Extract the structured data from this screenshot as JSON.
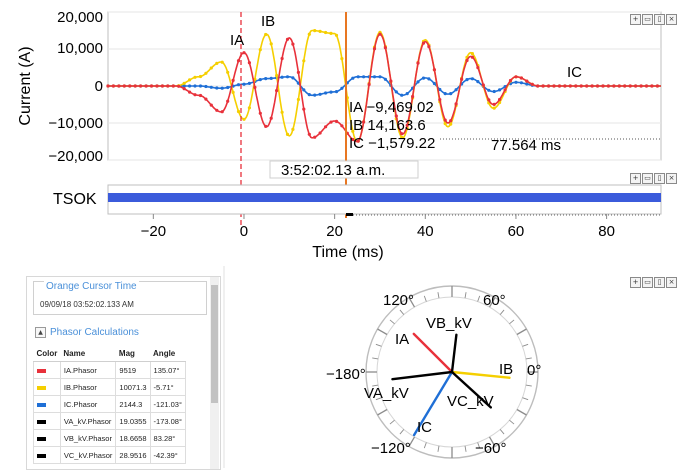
{
  "waveform_chart": {
    "ylabel": "Current (A)",
    "yticks": [
      "20,000",
      "10,000",
      "0",
      "−10,000",
      "−20,000"
    ],
    "series_labels": {
      "ia": "IA",
      "ib": "IB",
      "ic": "IC"
    },
    "readout": {
      "ia": "IA −9,469.02",
      "ib": "IB 14,163.6",
      "ic": "IC −1,579.22"
    },
    "delta_time": "77.564 ms",
    "cursor_time": "3:52:02.13 a.m.",
    "colors": {
      "ia": "#e8313b",
      "ib": "#f5cf00",
      "ic": "#1f6fd6",
      "cursor": "#e87722"
    }
  },
  "chart_data": {
    "type": "line",
    "xlabel": "Time (ms)",
    "ylabel": "Current (A)",
    "xlim": [
      -30,
      92
    ],
    "ylim": [
      -20000,
      20000
    ],
    "xticks": [
      -20,
      0,
      20,
      40,
      60,
      80
    ],
    "yticks": [
      -20000,
      -10000,
      0,
      10000,
      20000
    ],
    "series": [
      {
        "name": "IA",
        "x": [
          -30,
          -15,
          -10,
          -5,
          0,
          5,
          10,
          15,
          20,
          25,
          30,
          35,
          40,
          45,
          50,
          55,
          60,
          65,
          70,
          75,
          80,
          85,
          90
        ],
        "values": [
          0,
          0,
          -2500,
          -7000,
          9000,
          -11000,
          13000,
          -14000,
          -9469,
          -15000,
          14000,
          -13000,
          12000,
          -10000,
          8000,
          -5000,
          2500,
          0,
          0,
          0,
          0,
          0,
          0
        ]
      },
      {
        "name": "IB",
        "x": [
          -30,
          -15,
          -10,
          -5,
          0,
          5,
          10,
          15,
          20,
          25,
          30,
          35,
          40,
          45,
          50,
          55,
          60,
          65,
          70,
          75,
          80,
          85,
          90
        ],
        "values": [
          0,
          0,
          2500,
          6500,
          -9000,
          14000,
          -13500,
          15000,
          14164,
          -15000,
          14500,
          -14000,
          12500,
          -11000,
          9000,
          -6000,
          2500,
          0,
          0,
          0,
          0,
          0,
          0
        ]
      },
      {
        "name": "IC",
        "x": [
          -30,
          -15,
          -10,
          -5,
          0,
          5,
          10,
          15,
          20,
          25,
          30,
          35,
          40,
          45,
          50,
          55,
          60,
          65,
          70,
          75,
          80,
          85,
          90
        ],
        "values": [
          0,
          0,
          0,
          -600,
          500,
          2000,
          2500,
          -2500,
          -1579,
          2500,
          2500,
          -2500,
          2200,
          -2200,
          2000,
          -1500,
          1000,
          0,
          0,
          0,
          0,
          0,
          0
        ]
      }
    ],
    "markers": [
      {
        "x": 0,
        "style": "dashed",
        "color": "#e8313b"
      },
      {
        "x": 20.5,
        "style": "solid",
        "color": "#e87722"
      }
    ]
  },
  "digital_channel": {
    "label": "TSOK",
    "color": "#3b5bdb",
    "from": -30,
    "to": 92
  },
  "cursor_panel": {
    "title": "Orange Cursor Time",
    "value": "09/09/18 03:52:02.133 AM"
  },
  "phasor_calc": {
    "title": "Phasor Calculations",
    "columns": [
      "Color",
      "Name",
      "Mag",
      "Angle"
    ],
    "rows": [
      {
        "color": "#e8313b",
        "name": "IA.Phasor",
        "mag": "9519",
        "angle": "135.07°"
      },
      {
        "color": "#f5cf00",
        "name": "IB.Phasor",
        "mag": "10071.3",
        "angle": "-5.71°"
      },
      {
        "color": "#1f6fd6",
        "name": "IC.Phasor",
        "mag": "2144.3",
        "angle": "-121.03°"
      },
      {
        "color": "#000000",
        "name": "VA_kV.Phasor",
        "mag": "19.0355",
        "angle": "-173.08°"
      },
      {
        "color": "#000000",
        "name": "VB_kV.Phasor",
        "mag": "18.6658",
        "angle": "83.28°"
      },
      {
        "color": "#000000",
        "name": "VC_kV.Phasor",
        "mag": "28.9516",
        "angle": "-42.39°"
      }
    ]
  },
  "phasor_diagram": {
    "angle_labels": {
      "a120": "120°",
      "a60": "60°",
      "a180": "−180°",
      "a0": "0°",
      "am120": "−120°",
      "am60": "−60°"
    },
    "vector_labels": {
      "ia": "IA",
      "ib": "IB",
      "ic": "IC",
      "va": "VA_kV",
      "vb": "VB_kV",
      "vc": "VC_kV"
    },
    "vectors": [
      {
        "key": "ia",
        "angle": 135.07,
        "rel_mag": 0.72,
        "color": "#e8313b"
      },
      {
        "key": "ib",
        "angle": -5.71,
        "rel_mag": 0.77,
        "color": "#f5cf00"
      },
      {
        "key": "ic",
        "angle": -121.03,
        "rel_mag": 0.98,
        "color": "#1f6fd6"
      },
      {
        "key": "va",
        "angle": -173.08,
        "rel_mag": 0.8,
        "color": "#000000"
      },
      {
        "key": "vb",
        "angle": 83.28,
        "rel_mag": 0.5,
        "color": "#000000"
      },
      {
        "key": "vc",
        "angle": -42.39,
        "rel_mag": 0.7,
        "color": "#000000"
      }
    ]
  },
  "window_controls": {
    "pin": "+",
    "restore": "▭",
    "max": "▯",
    "close": "×"
  }
}
